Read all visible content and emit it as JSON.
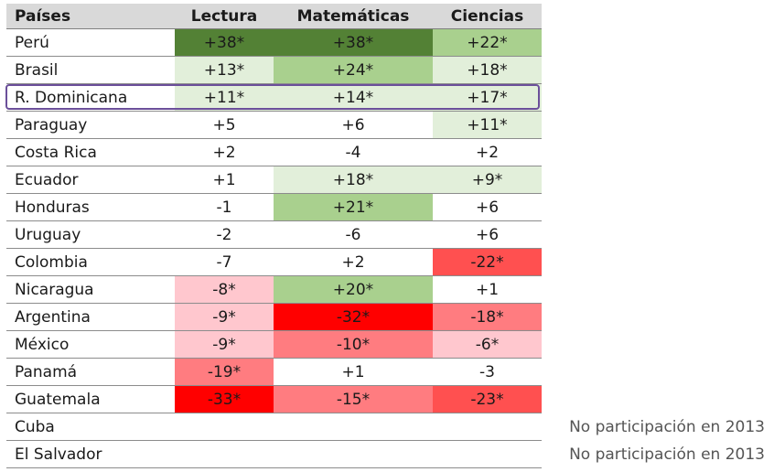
{
  "header": {
    "country": "Países",
    "reading": "Lectura",
    "math": "Matemáticas",
    "science": "Ciencias"
  },
  "colors": {
    "green_dark": "#538135",
    "green_mid": "#a9d08e",
    "green_light": "#e2efda",
    "red_strong": "#ff0000",
    "red_mid": "#ff5050",
    "red_soft": "#ff7c80",
    "red_light": "#ffc7ce",
    "header_bg": "#d9d9d9",
    "highlight_border": "#6b4f9a"
  },
  "rows": [
    {
      "country": "Perú",
      "reading": "+38*",
      "math": "+38*",
      "science": "+22*",
      "fills": [
        "green_dark",
        "green_dark",
        "green_mid"
      ]
    },
    {
      "country": "Brasil",
      "reading": "+13*",
      "math": "+24*",
      "science": "+18*",
      "fills": [
        "green_light",
        "green_mid",
        "green_light"
      ]
    },
    {
      "country": "R. Dominicana",
      "reading": "+11*",
      "math": "+14*",
      "science": "+17*",
      "fills": [
        "green_light",
        "green_light",
        "green_light"
      ]
    },
    {
      "country": "Paraguay",
      "reading": "+5",
      "math": "+6",
      "science": "+11*",
      "fills": [
        "",
        "",
        "green_light"
      ]
    },
    {
      "country": "Costa Rica",
      "reading": "+2",
      "math": "-4",
      "science": "+2",
      "fills": [
        "",
        "",
        ""
      ]
    },
    {
      "country": "Ecuador",
      "reading": "+1",
      "math": "+18*",
      "science": "+9*",
      "fills": [
        "",
        "green_light",
        "green_light"
      ]
    },
    {
      "country": "Honduras",
      "reading": "-1",
      "math": "+21*",
      "science": "+6",
      "fills": [
        "",
        "green_mid",
        ""
      ]
    },
    {
      "country": "Uruguay",
      "reading": "-2",
      "math": "-6",
      "science": "+6",
      "fills": [
        "",
        "",
        ""
      ]
    },
    {
      "country": "Colombia",
      "reading": "-7",
      "math": "+2",
      "science": "-22*",
      "fills": [
        "",
        "",
        "red_mid"
      ]
    },
    {
      "country": "Nicaragua",
      "reading": "-8*",
      "math": "+20*",
      "science": "+1",
      "fills": [
        "red_light",
        "green_mid",
        ""
      ]
    },
    {
      "country": "Argentina",
      "reading": "-9*",
      "math": "-32*",
      "science": "-18*",
      "fills": [
        "red_light",
        "red_strong",
        "red_soft"
      ]
    },
    {
      "country": "México",
      "reading": "-9*",
      "math": "-10*",
      "science": "-6*",
      "fills": [
        "red_light",
        "red_soft",
        "red_light"
      ]
    },
    {
      "country": "Panamá",
      "reading": "-19*",
      "math": "+1",
      "science": "-3",
      "fills": [
        "red_soft",
        "",
        ""
      ]
    },
    {
      "country": "Guatemala",
      "reading": "-33*",
      "math": "-15*",
      "science": "-23*",
      "fills": [
        "red_strong",
        "red_soft",
        "red_mid"
      ]
    },
    {
      "country": "Cuba",
      "reading": "",
      "math": "",
      "science": "",
      "fills": [
        "",
        "",
        ""
      ]
    },
    {
      "country": "El Salvador",
      "reading": "",
      "math": "",
      "science": "",
      "fills": [
        "",
        "",
        ""
      ]
    }
  ],
  "notes": [
    "No participación en 2013",
    "No participación en 2013"
  ]
}
